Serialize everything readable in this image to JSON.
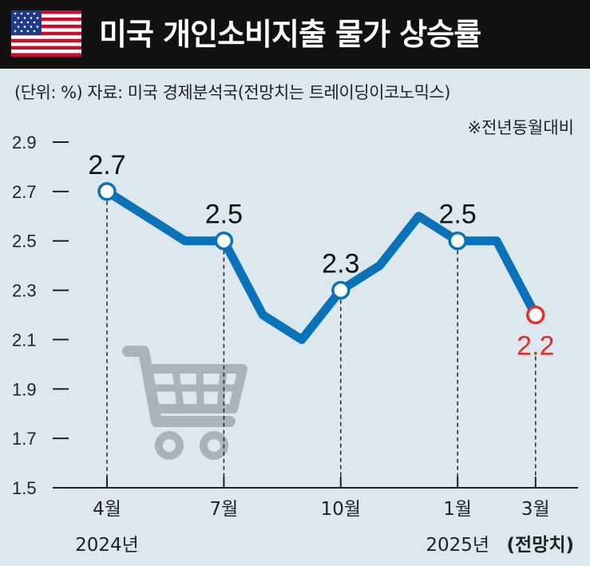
{
  "header": {
    "title": "미국 개인소비지출 물가 상승률",
    "flag_icon": "us-flag-icon"
  },
  "source_line": "(단위: %) 자료: 미국 경제분석국(전망치는 트레이딩이코노믹스)",
  "note": "※전년동월대비",
  "colors": {
    "background": "#dde8ee",
    "header": "#111111",
    "line": "#0a72b8",
    "forecast_point": "#e0302a",
    "cart": "#a9b4b9"
  },
  "chart_data": {
    "type": "line",
    "title": "미국 개인소비지출 물가 상승률",
    "unit": "%",
    "x": [
      "2024-04",
      "2024-05",
      "2024-06",
      "2024-07",
      "2024-08",
      "2024-09",
      "2024-10",
      "2024-11",
      "2024-12",
      "2025-01",
      "2025-02",
      "2025-03"
    ],
    "series": [
      {
        "values": [
          2.7,
          2.6,
          2.5,
          2.5,
          2.2,
          2.1,
          2.3,
          2.4,
          2.6,
          2.5,
          2.5,
          2.2
        ]
      }
    ],
    "point_labels": [
      {
        "x": "2024-04",
        "text": "2.7"
      },
      {
        "x": "2024-07",
        "text": "2.5"
      },
      {
        "x": "2024-10",
        "text": "2.3"
      },
      {
        "x": "2025-01",
        "text": "2.5"
      },
      {
        "x": "2025-03",
        "text": "2.2",
        "forecast": true
      }
    ],
    "ylim": [
      1.5,
      2.9
    ],
    "yticks": [
      "2.9",
      "2.7",
      "2.5",
      "2.3",
      "2.1",
      "1.9",
      "1.7",
      "1.5"
    ],
    "xticks": [
      {
        "x": "2024-04",
        "label": "4월",
        "sub": "2024년"
      },
      {
        "x": "2024-07",
        "label": "7월",
        "sub": ""
      },
      {
        "x": "2024-10",
        "label": "10월",
        "sub": ""
      },
      {
        "x": "2025-01",
        "label": "1월",
        "sub": "2025년"
      },
      {
        "x": "2025-03",
        "label": "3월",
        "sub": "(전망치)"
      }
    ],
    "grid": false,
    "legend": "none",
    "decoration_icon": "shopping-cart-icon"
  }
}
